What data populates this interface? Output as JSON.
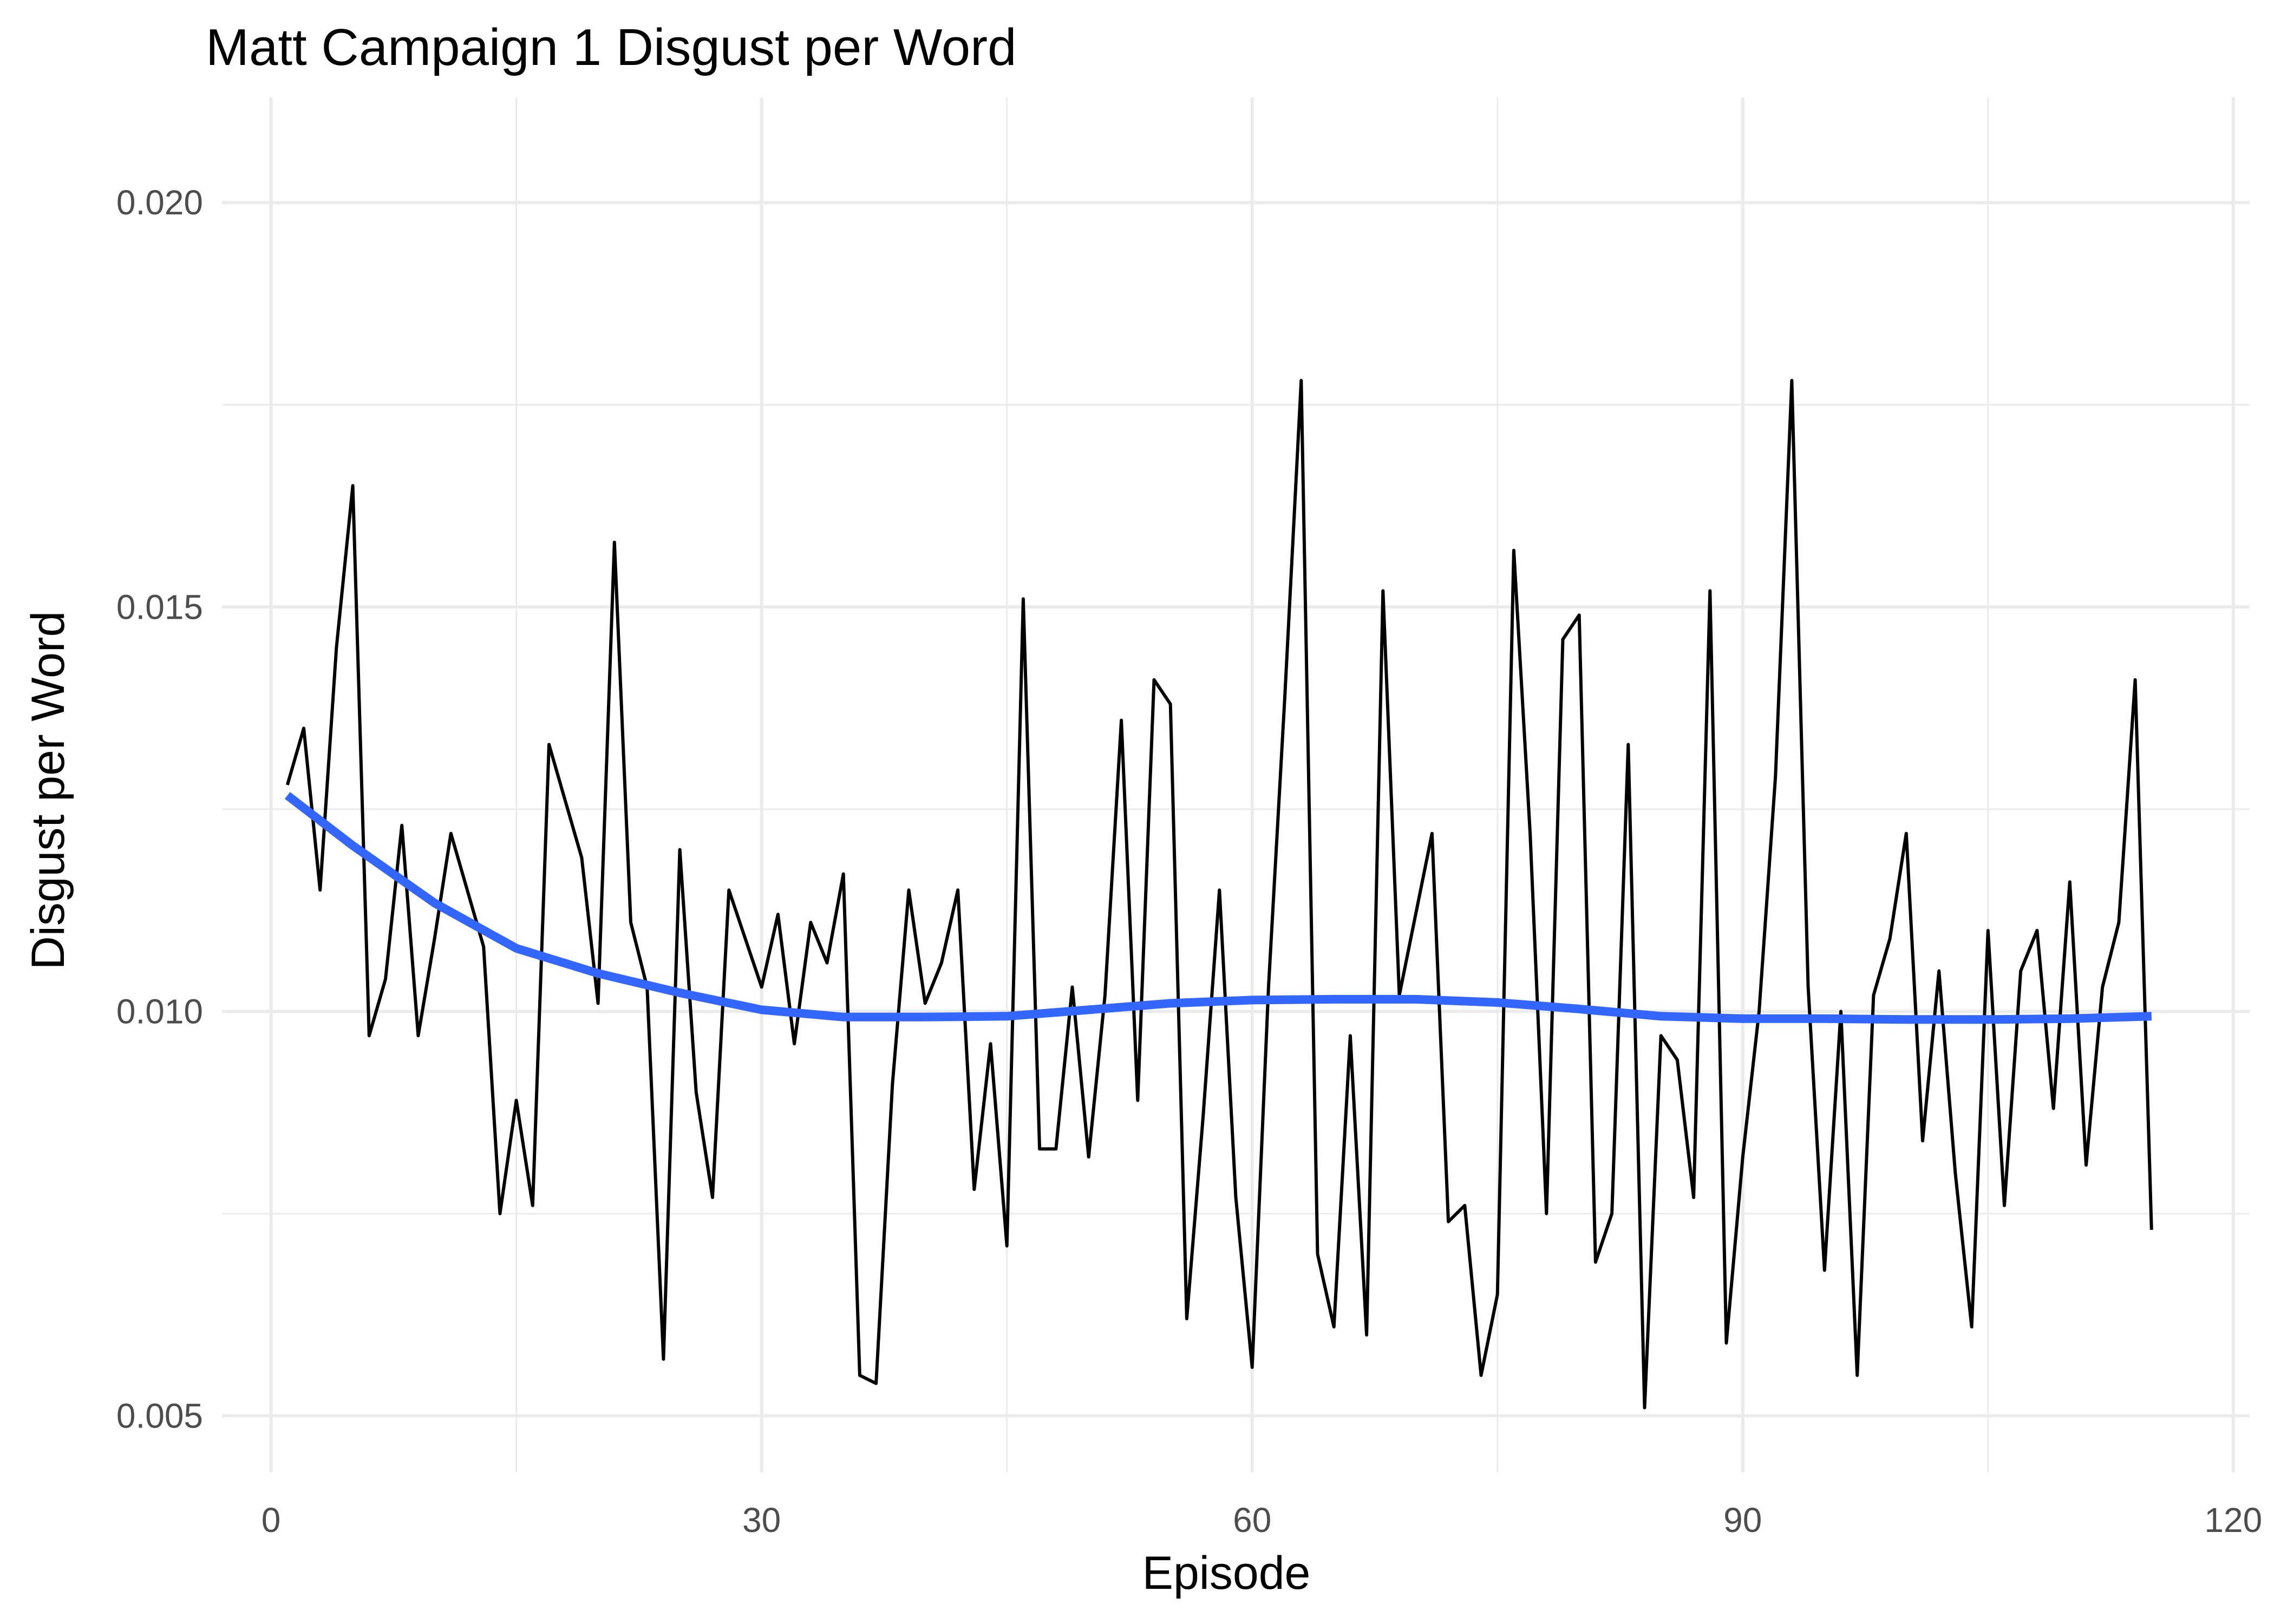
{
  "chart_data": {
    "type": "line",
    "title": "Matt Campaign 1 Disgust per Word",
    "xlabel": "Episode",
    "ylabel": "Disgust per Word",
    "xlim": [
      -3,
      121
    ],
    "ylim": [
      0.0043,
      0.0213
    ],
    "x_ticks": [
      0,
      30,
      60,
      90,
      120
    ],
    "x_tick_labels": [
      "0",
      "30",
      "60",
      "90",
      "120"
    ],
    "y_ticks": [
      0.005,
      0.01,
      0.015,
      0.02
    ],
    "y_tick_labels": [
      "0.005",
      "0.010",
      "0.015",
      "0.020"
    ],
    "x_minor_ticks": [
      15,
      45,
      75,
      105
    ],
    "y_minor_ticks": [
      0.0075,
      0.0125,
      0.0175
    ],
    "grid": true,
    "colors": {
      "raw": "#000000",
      "smooth": "#3366ff"
    },
    "series": [
      {
        "kind": "raw",
        "x": [
          1,
          2,
          3,
          4,
          5,
          6,
          7,
          8,
          9,
          10,
          11,
          12,
          13,
          14,
          15,
          16,
          17,
          18,
          19,
          20,
          21,
          22,
          23,
          24,
          25,
          26,
          27,
          28,
          29,
          30,
          31,
          32,
          33,
          34,
          35,
          36,
          37,
          38,
          39,
          40,
          41,
          42,
          43,
          44,
          45,
          46,
          47,
          48,
          49,
          50,
          51,
          52,
          53,
          54,
          55,
          56,
          57,
          58,
          59,
          60,
          61,
          62,
          63,
          64,
          65,
          66,
          67,
          68,
          69,
          70,
          71,
          72,
          73,
          74,
          75,
          76,
          77,
          78,
          79,
          80,
          81,
          82,
          83,
          84,
          85,
          86,
          87,
          88,
          89,
          90,
          91,
          92,
          93,
          94,
          95,
          96,
          97,
          98,
          99,
          100,
          101,
          102,
          103,
          104,
          105,
          106,
          107,
          108,
          109,
          110,
          111,
          112,
          113,
          114,
          115
        ],
        "values": [
          0.0128,
          0.0135,
          0.0115,
          0.0145,
          0.0165,
          0.0097,
          0.0104,
          0.0123,
          0.0097,
          0.0109,
          0.0122,
          0.0115,
          0.0108,
          0.0075,
          0.0089,
          0.0076,
          0.0133,
          0.0126,
          0.0119,
          0.0101,
          0.0158,
          0.0111,
          0.0103,
          0.0057,
          0.012,
          0.009,
          0.0077,
          0.0115,
          0.0109,
          0.0103,
          0.0112,
          0.0096,
          0.0111,
          0.0106,
          0.0117,
          0.0055,
          0.0054,
          0.0091,
          0.0115,
          0.0101,
          0.0106,
          0.0115,
          0.0078,
          0.0096,
          0.0071,
          0.0151,
          0.0083,
          0.0083,
          0.0103,
          0.0082,
          0.0102,
          0.0136,
          0.0089,
          0.0141,
          0.0138,
          0.0062,
          0.0087,
          0.0115,
          0.0077,
          0.0056,
          0.0103,
          0.0139,
          0.0178,
          0.007,
          0.0061,
          0.0097,
          0.006,
          0.0152,
          0.0102,
          0.0112,
          0.0122,
          0.0074,
          0.0076,
          0.0055,
          0.0065,
          0.0157,
          0.0122,
          0.0075,
          0.0146,
          0.0149,
          0.0069,
          0.0075,
          0.0133,
          0.0051,
          0.0097,
          0.0094,
          0.0077,
          0.0152,
          0.0059,
          0.0082,
          0.01,
          0.0129,
          0.0178,
          0.0103,
          0.0068,
          0.01,
          0.0055,
          0.0102,
          0.0109,
          0.0122,
          0.0084,
          0.0105,
          0.008,
          0.0061,
          0.011,
          0.0076,
          0.0105,
          0.011,
          0.0088,
          0.0116,
          0.0081,
          0.0103,
          0.0111,
          0.0141,
          0.0073
        ]
      },
      {
        "kind": "smooth",
        "x": [
          1,
          5,
          10,
          15,
          20,
          25,
          30,
          35,
          40,
          45,
          50,
          55,
          60,
          65,
          70,
          75,
          80,
          85,
          90,
          95,
          100,
          105,
          110,
          115
        ],
        "values": [
          0.01267,
          0.01205,
          0.01134,
          0.01078,
          0.01047,
          0.01023,
          0.01002,
          0.00993,
          0.00993,
          0.00994,
          0.01002,
          0.0101,
          0.01014,
          0.01015,
          0.01015,
          0.01011,
          0.01003,
          0.00994,
          0.00991,
          0.00991,
          0.0099,
          0.0099,
          0.00991,
          0.00994
        ]
      }
    ]
  }
}
